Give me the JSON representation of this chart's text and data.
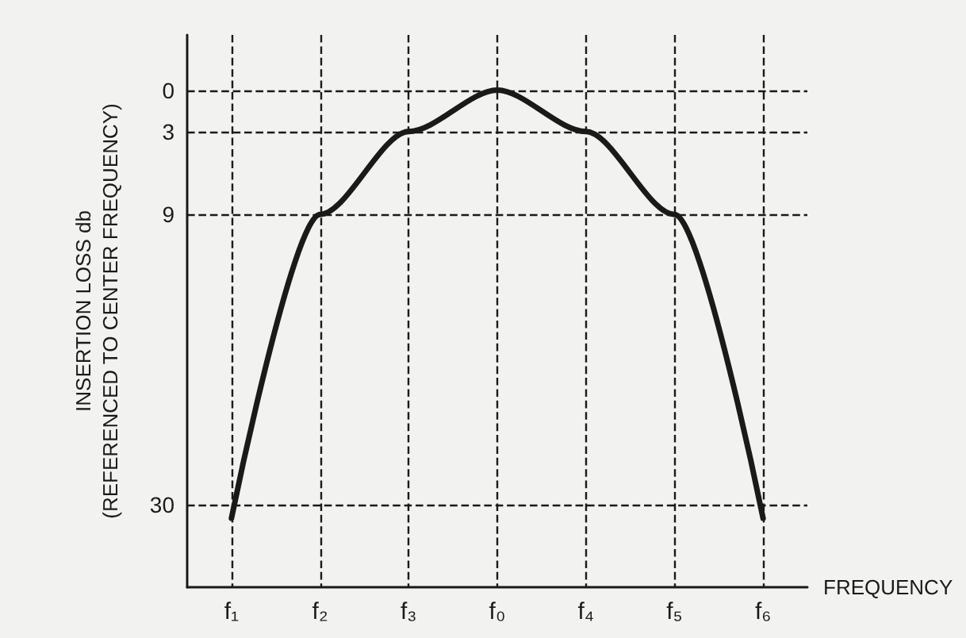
{
  "chart_data": {
    "type": "line",
    "xlabel": "FREQUENCY",
    "ylabel": "INSERTION LOSS db\n(REFERENCED TO CENTER FREQUENCY)",
    "categories": [
      "f₁",
      "f₂",
      "f₃",
      "f₀",
      "f₄",
      "f₅",
      "f₆"
    ],
    "series": [
      {
        "color": "#1a1a1a",
        "values": [
          31,
          9,
          3,
          0,
          3,
          9,
          31
        ]
      }
    ],
    "ylim": [
      36,
      -4
    ],
    "yticks": [
      0,
      3,
      9,
      30
    ],
    "marker": "none",
    "line_style": "solid",
    "ref_lines": [
      {
        "axis": "y",
        "value": 0,
        "line_style": "dashed",
        "color": "#1a1a1a"
      },
      {
        "axis": "y",
        "value": 3,
        "line_style": "dashed",
        "color": "#1a1a1a"
      },
      {
        "axis": "y",
        "value": 9,
        "line_style": "dashed",
        "color": "#1a1a1a"
      },
      {
        "axis": "y",
        "value": 30,
        "line_style": "dashed",
        "color": "#1a1a1a"
      },
      {
        "axis": "x",
        "value": "f₁",
        "line_style": "dashed",
        "color": "#1a1a1a"
      },
      {
        "axis": "x",
        "value": "f₂",
        "line_style": "dashed",
        "color": "#1a1a1a"
      },
      {
        "axis": "x",
        "value": "f₃",
        "line_style": "dashed",
        "color": "#1a1a1a"
      },
      {
        "axis": "x",
        "value": "f₀",
        "line_style": "dashed",
        "color": "#1a1a1a"
      },
      {
        "axis": "x",
        "value": "f₄",
        "line_style": "dashed",
        "color": "#1a1a1a"
      },
      {
        "axis": "x",
        "value": "f₅",
        "line_style": "dashed",
        "color": "#1a1a1a"
      },
      {
        "axis": "x",
        "value": "f₆",
        "line_style": "dashed",
        "color": "#1a1a1a"
      }
    ]
  }
}
